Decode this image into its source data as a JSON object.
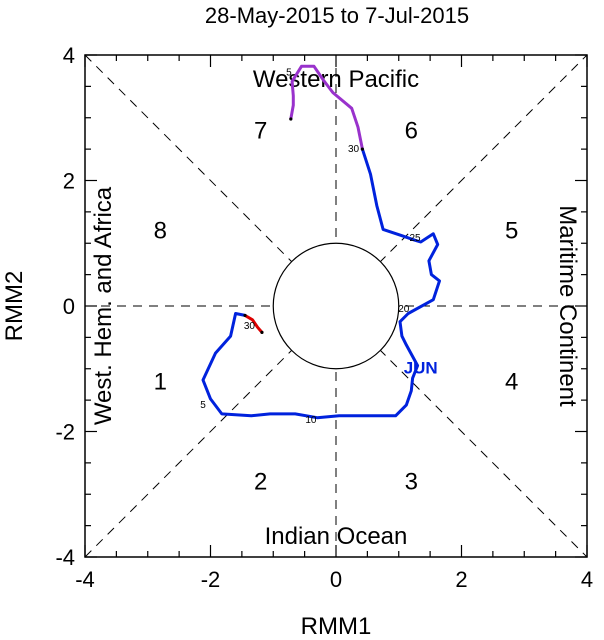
{
  "chart_data": {
    "type": "line",
    "title": "28-May-2015 to 7-Jul-2015",
    "xlabel": "RMM1",
    "ylabel": "RMM2",
    "xlim": [
      -4,
      4
    ],
    "ylim": [
      -4,
      4
    ],
    "xticks": [
      "-4",
      "-2",
      "0",
      "2",
      "4"
    ],
    "yticks": [
      "-4",
      "-2",
      "0",
      "2",
      "4"
    ],
    "regions": {
      "top": "Western Pacific",
      "bottom": "Indian Ocean",
      "left": "West. Hem. and Africa",
      "right": "Maritime Continent"
    },
    "phases": [
      {
        "label": "1",
        "x": -2.8,
        "y": -1.2
      },
      {
        "label": "2",
        "x": -1.2,
        "y": -2.8
      },
      {
        "label": "3",
        "x": 1.2,
        "y": -2.8
      },
      {
        "label": "4",
        "x": 2.8,
        "y": -1.2
      },
      {
        "label": "5",
        "x": 2.8,
        "y": 1.2
      },
      {
        "label": "6",
        "x": 1.2,
        "y": 2.8
      },
      {
        "label": "7",
        "x": -1.2,
        "y": 2.8
      },
      {
        "label": "8",
        "x": -2.8,
        "y": 1.2
      }
    ],
    "series": [
      {
        "color": "#dd0000",
        "points": [
          [
            -1.18,
            -0.42
          ],
          [
            -1.25,
            -0.34
          ],
          [
            -1.33,
            -0.22
          ],
          [
            -1.45,
            -0.15
          ]
        ]
      },
      {
        "color": "#0022dd",
        "points": [
          [
            -1.45,
            -0.15
          ],
          [
            -1.6,
            -0.12
          ],
          [
            -1.68,
            -0.48
          ],
          [
            -1.92,
            -0.75
          ],
          [
            -2.12,
            -1.18
          ],
          [
            -2.0,
            -1.48
          ],
          [
            -1.82,
            -1.72
          ],
          [
            -1.35,
            -1.75
          ],
          [
            -1.05,
            -1.72
          ],
          [
            -0.65,
            -1.72
          ],
          [
            -0.3,
            -1.78
          ],
          [
            0.05,
            -1.75
          ],
          [
            0.45,
            -1.75
          ],
          [
            0.95,
            -1.75
          ],
          [
            1.12,
            -1.58
          ],
          [
            1.2,
            -1.35
          ],
          [
            1.22,
            -1.15
          ],
          [
            1.3,
            -0.95
          ],
          [
            1.12,
            -0.62
          ],
          [
            1.05,
            -0.48
          ],
          [
            1.02,
            -0.25
          ],
          [
            1.15,
            -0.12
          ],
          [
            1.55,
            0.1
          ],
          [
            1.65,
            0.4
          ],
          [
            1.52,
            0.5
          ],
          [
            1.48,
            0.72
          ],
          [
            1.62,
            0.98
          ],
          [
            1.55,
            1.15
          ],
          [
            1.35,
            1.02
          ],
          [
            1.25,
            1.05
          ],
          [
            1.05,
            1.12
          ],
          [
            0.75,
            1.22
          ],
          [
            0.65,
            1.6
          ],
          [
            0.55,
            2.1
          ],
          [
            0.42,
            2.5
          ]
        ]
      },
      {
        "color": "#9932cc",
        "points": [
          [
            0.42,
            2.5
          ],
          [
            0.35,
            2.85
          ],
          [
            0.25,
            3.15
          ],
          [
            -0.05,
            3.4
          ],
          [
            -0.2,
            3.6
          ],
          [
            -0.35,
            3.82
          ],
          [
            -0.55,
            3.82
          ],
          [
            -0.7,
            3.58
          ],
          [
            -0.68,
            3.35
          ],
          [
            -0.68,
            3.2
          ],
          [
            -0.72,
            2.98
          ]
        ]
      }
    ],
    "day_labels": [
      {
        "text": "30",
        "x": -1.38,
        "y": -0.32
      },
      {
        "text": "5",
        "x": -2.12,
        "y": -1.58
      },
      {
        "text": "10",
        "x": -0.4,
        "y": -1.82
      },
      {
        "text": "20",
        "x": 1.08,
        "y": -0.05
      },
      {
        "text": "25",
        "x": 1.26,
        "y": 1.08
      },
      {
        "text": "30",
        "x": 0.28,
        "y": 2.5
      },
      {
        "text": "5",
        "x": -0.75,
        "y": 3.72
      }
    ],
    "month_labels": [
      {
        "text": "JUN",
        "x": 1.35,
        "y": -0.98,
        "color": "#0022dd"
      }
    ],
    "inner_circle_radius": 1
  }
}
